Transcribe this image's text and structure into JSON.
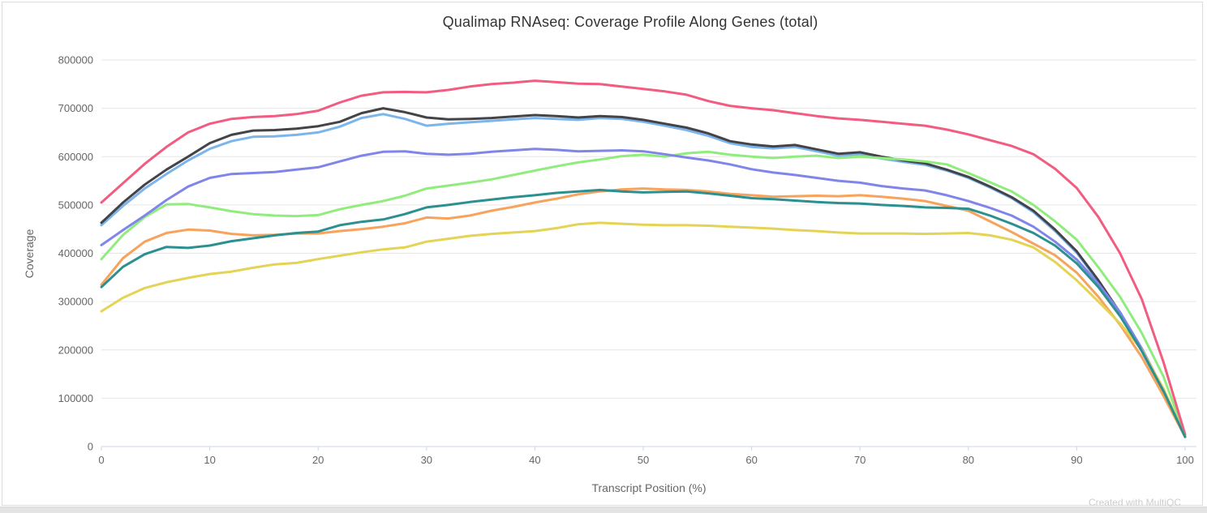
{
  "page": {
    "credit": "Created with MultiQC"
  },
  "colors": {
    "grid": "#e6e6e6",
    "axis_line": "#ccd6eb",
    "tick_label": "#666666",
    "axis_title": "#666666",
    "title": "#333333",
    "credit": "#cccccc",
    "card_border": "#dddddd",
    "bottom_strip": "#e4e4e4"
  },
  "chart_data": {
    "type": "line",
    "title": "Qualimap RNAseq: Coverage Profile Along Genes (total)",
    "xlabel": "Transcript Position (%)",
    "ylabel": "Coverage",
    "xlim": [
      0,
      100
    ],
    "ylim": [
      0,
      800000
    ],
    "x_ticks": [
      0,
      10,
      20,
      30,
      40,
      50,
      60,
      70,
      80,
      90,
      100
    ],
    "y_ticks": [
      0,
      100000,
      200000,
      300000,
      400000,
      500000,
      600000,
      700000,
      800000
    ],
    "grid": "horizontal",
    "legend": "none",
    "x": [
      0,
      2,
      4,
      6,
      8,
      10,
      12,
      14,
      16,
      18,
      20,
      22,
      24,
      26,
      28,
      30,
      32,
      34,
      36,
      38,
      40,
      42,
      44,
      46,
      48,
      50,
      52,
      54,
      56,
      58,
      60,
      62,
      64,
      66,
      68,
      70,
      72,
      74,
      76,
      78,
      80,
      82,
      84,
      86,
      88,
      90,
      92,
      94,
      96,
      98,
      100
    ],
    "series": [
      {
        "name": "light-blue",
        "color": "#7cb5ec",
        "values": [
          458000,
          498000,
          534000,
          564000,
          592000,
          616000,
          632000,
          641000,
          642000,
          645000,
          650000,
          662000,
          680000,
          688000,
          678000,
          664000,
          668000,
          671000,
          674000,
          677000,
          680000,
          678000,
          676000,
          680000,
          678000,
          672000,
          664000,
          655000,
          643000,
          628000,
          620000,
          617000,
          620000,
          611000,
          602000,
          605000,
          596000,
          589000,
          583000,
          571000,
          556000,
          536000,
          514000,
          485000,
          446000,
          401000,
          341000,
          274000,
          197000,
          112000,
          21000
        ]
      },
      {
        "name": "black",
        "color": "#434348",
        "values": [
          463000,
          505000,
          542000,
          573000,
          600000,
          628000,
          645000,
          654000,
          655000,
          658000,
          663000,
          672000,
          690000,
          700000,
          692000,
          681000,
          677000,
          678000,
          680000,
          683000,
          686000,
          684000,
          681000,
          684000,
          682000,
          676000,
          668000,
          660000,
          648000,
          632000,
          625000,
          621000,
          624000,
          615000,
          606000,
          609000,
          600000,
          592000,
          586000,
          573000,
          558000,
          538000,
          516000,
          488000,
          449000,
          404000,
          344000,
          277000,
          200000,
          115000,
          22000
        ]
      },
      {
        "name": "green",
        "color": "#90ed7d",
        "values": [
          388000,
          438000,
          475000,
          501000,
          502000,
          495000,
          487000,
          481000,
          478000,
          477000,
          479000,
          491000,
          500000,
          508000,
          519000,
          534000,
          540000,
          546000,
          553000,
          562000,
          571000,
          580000,
          588000,
          594000,
          601000,
          604000,
          600000,
          607000,
          610000,
          604000,
          600000,
          597000,
          600000,
          602000,
          597000,
          600000,
          597000,
          594000,
          590000,
          584000,
          566000,
          547000,
          528000,
          500000,
          466000,
          428000,
          371000,
          310000,
          235000,
          145000,
          23000
        ]
      },
      {
        "name": "orange",
        "color": "#f7a35c",
        "values": [
          335000,
          390000,
          424000,
          442000,
          449000,
          447000,
          440000,
          437000,
          438000,
          441000,
          441000,
          446000,
          450000,
          455000,
          462000,
          474000,
          472000,
          478000,
          488000,
          496000,
          505000,
          513000,
          522000,
          528000,
          532000,
          534000,
          532000,
          531000,
          528000,
          523000,
          520000,
          517000,
          518000,
          519000,
          518000,
          520000,
          517000,
          513000,
          508000,
          498000,
          488000,
          466000,
          444000,
          420000,
          396000,
          360000,
          310000,
          252000,
          185000,
          105000,
          20000
        ]
      },
      {
        "name": "purple",
        "color": "#8085e9",
        "values": [
          417000,
          448000,
          478000,
          510000,
          538000,
          556000,
          564000,
          566000,
          568000,
          573000,
          578000,
          590000,
          602000,
          610000,
          611000,
          606000,
          604000,
          606000,
          610000,
          613000,
          616000,
          614000,
          611000,
          612000,
          613000,
          611000,
          605000,
          598000,
          592000,
          584000,
          574000,
          567000,
          562000,
          556000,
          550000,
          546000,
          539000,
          534000,
          530000,
          520000,
          508000,
          494000,
          478000,
          455000,
          424000,
          387000,
          337000,
          278000,
          203000,
          118000,
          20000
        ]
      },
      {
        "name": "pink",
        "color": "#f15c80",
        "values": [
          505000,
          545000,
          585000,
          620000,
          650000,
          668000,
          678000,
          682000,
          684000,
          688000,
          695000,
          712000,
          726000,
          733000,
          734000,
          733000,
          738000,
          745000,
          750000,
          753000,
          757000,
          754000,
          751000,
          750000,
          745000,
          740000,
          735000,
          728000,
          715000,
          705000,
          700000,
          696000,
          690000,
          684000,
          679000,
          676000,
          672000,
          668000,
          664000,
          656000,
          646000,
          634000,
          622000,
          605000,
          575000,
          535000,
          475000,
          400000,
          305000,
          175000,
          25000
        ]
      },
      {
        "name": "yellow",
        "color": "#e4d354",
        "values": [
          280000,
          308000,
          328000,
          340000,
          349000,
          357000,
          362000,
          370000,
          377000,
          380000,
          388000,
          395000,
          402000,
          408000,
          412000,
          424000,
          430000,
          436000,
          440000,
          443000,
          446000,
          452000,
          460000,
          463000,
          461000,
          459000,
          458000,
          458000,
          457000,
          455000,
          453000,
          451000,
          448000,
          446000,
          443000,
          441000,
          441000,
          441000,
          440000,
          441000,
          442000,
          437000,
          428000,
          412000,
          382000,
          344000,
          300000,
          255000,
          200000,
          120000,
          20000
        ]
      },
      {
        "name": "teal",
        "color": "#2b908f",
        "values": [
          330000,
          372000,
          398000,
          413000,
          411000,
          416000,
          425000,
          431000,
          437000,
          442000,
          445000,
          458000,
          465000,
          470000,
          481000,
          495000,
          500000,
          506000,
          511000,
          516000,
          520000,
          525000,
          528000,
          531000,
          528000,
          526000,
          527000,
          528000,
          524000,
          519000,
          514000,
          512000,
          509000,
          506000,
          504000,
          503000,
          500000,
          498000,
          495000,
          494000,
          492000,
          478000,
          461000,
          442000,
          416000,
          379000,
          330000,
          270000,
          198000,
          115000,
          20000
        ]
      }
    ]
  }
}
